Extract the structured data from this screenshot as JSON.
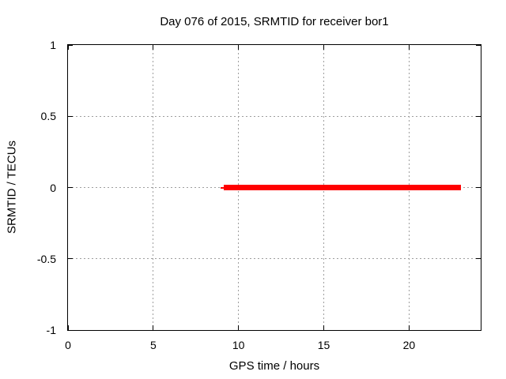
{
  "chart_data": {
    "type": "line",
    "title": "Day 076 of 2015, SRMTID for receiver bor1",
    "xlabel": "GPS time / hours",
    "ylabel": "SRMTID / TECUs",
    "xlim": [
      0,
      24.2
    ],
    "ylim": [
      -1,
      1
    ],
    "xticks": [
      0,
      5,
      10,
      15,
      20
    ],
    "xtick_labels": [
      "0",
      "5",
      "10",
      "15",
      "20"
    ],
    "yticks": [
      1,
      0.5,
      0,
      -0.5,
      -1
    ],
    "ytick_labels": [
      "1",
      "0.5",
      "0",
      "-0.5",
      "-1"
    ],
    "grid": true,
    "grid_color": "#9e9e9e",
    "border_color": "#000000",
    "text_color": "#000000",
    "background_color": "#ffffff",
    "legend": "none",
    "series": [
      {
        "name": "SRMTID",
        "color": "#ff0000",
        "y_value": 0,
        "segments": [
          {
            "x1": 8.95,
            "x2": 9.2,
            "lw": 2
          },
          {
            "x1": 9.15,
            "x2": 23.05,
            "lw": 7
          }
        ]
      }
    ]
  }
}
